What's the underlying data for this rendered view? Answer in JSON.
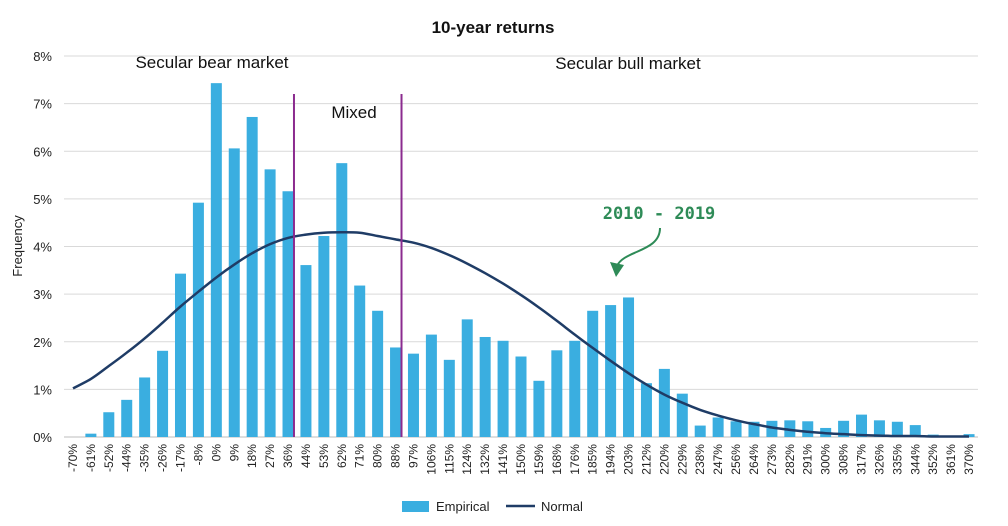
{
  "chart_data": {
    "type": "bar",
    "title": "10-year returns",
    "ylabel": "Frequency",
    "xlabel": "",
    "ylim": [
      0,
      8
    ],
    "yticks": [
      "0%",
      "1%",
      "2%",
      "3%",
      "4%",
      "5%",
      "6%",
      "7%",
      "8%"
    ],
    "grid": true,
    "legend_position": "bottom",
    "categories": [
      "-70%",
      "-61%",
      "-52%",
      "-44%",
      "-35%",
      "-26%",
      "-17%",
      "-8%",
      "0%",
      "9%",
      "18%",
      "27%",
      "36%",
      "44%",
      "53%",
      "62%",
      "71%",
      "80%",
      "88%",
      "97%",
      "106%",
      "115%",
      "124%",
      "132%",
      "141%",
      "150%",
      "159%",
      "168%",
      "176%",
      "185%",
      "194%",
      "203%",
      "212%",
      "220%",
      "229%",
      "238%",
      "247%",
      "256%",
      "264%",
      "273%",
      "282%",
      "291%",
      "300%",
      "308%",
      "317%",
      "326%",
      "335%",
      "344%",
      "352%",
      "361%",
      "370%"
    ],
    "series": [
      {
        "name": "Empirical",
        "type": "bar",
        "color": "#3aaee0",
        "values": [
          0,
          0.07,
          0.52,
          0.78,
          1.25,
          1.81,
          3.43,
          4.92,
          7.43,
          6.06,
          6.72,
          5.62,
          5.16,
          3.61,
          4.22,
          5.75,
          3.18,
          2.65,
          1.88,
          1.75,
          2.15,
          1.62,
          2.47,
          2.1,
          2.02,
          1.69,
          1.18,
          1.82,
          2.02,
          2.65,
          2.77,
          2.93,
          1.13,
          1.43,
          0.91,
          0.24,
          0.41,
          0.33,
          0.32,
          0.34,
          0.35,
          0.33,
          0.19,
          0.34,
          0.47,
          0.35,
          0.32,
          0.25,
          0.05,
          0.03,
          0.06
        ]
      },
      {
        "name": "Normal",
        "type": "line",
        "color": "#1f3c66",
        "values": [
          1.02,
          1.22,
          1.49,
          1.77,
          2.07,
          2.4,
          2.74,
          3.05,
          3.35,
          3.62,
          3.86,
          4.05,
          4.18,
          4.25,
          4.29,
          4.3,
          4.29,
          4.22,
          4.15,
          4.08,
          3.97,
          3.82,
          3.64,
          3.44,
          3.22,
          2.98,
          2.72,
          2.44,
          2.15,
          1.87,
          1.6,
          1.34,
          1.1,
          0.89,
          0.72,
          0.57,
          0.45,
          0.35,
          0.27,
          0.2,
          0.15,
          0.11,
          0.08,
          0.06,
          0.04,
          0.03,
          0.02,
          0.02,
          0.01,
          0.01,
          0.01
        ]
      }
    ],
    "regions": [
      {
        "label": "Secular bear market"
      },
      {
        "label": "Mixed"
      },
      {
        "label": "Secular bull market"
      }
    ],
    "annotations": [
      {
        "text": "2010 - 2019",
        "color": "#2e8b57",
        "points_to": "194%"
      }
    ]
  }
}
